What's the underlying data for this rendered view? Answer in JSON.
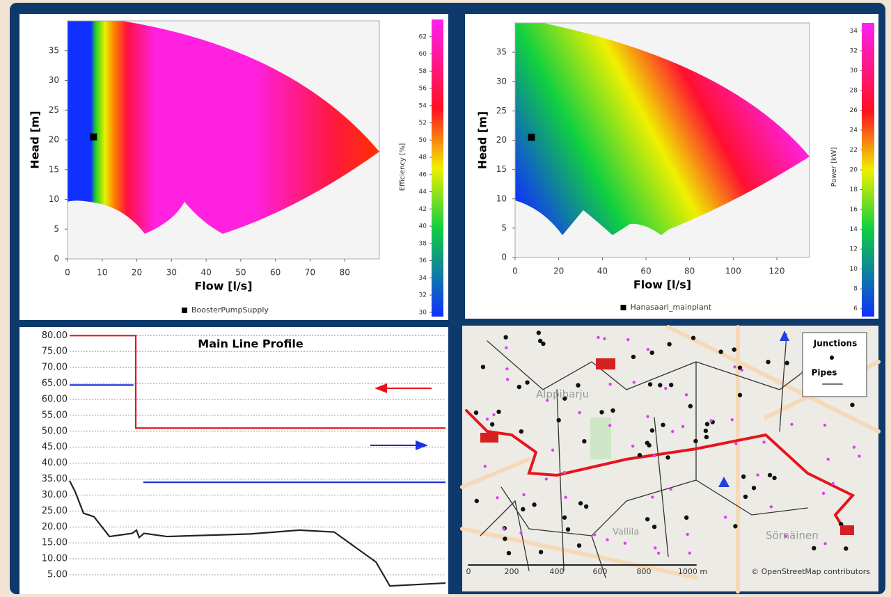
{
  "chart_data": [
    {
      "type": "heatmap",
      "xlabel": "Flow [l/s]",
      "ylabel": "Head [m]",
      "xlim": [
        0,
        90
      ],
      "xticks": [
        0,
        10,
        20,
        30,
        40,
        50,
        60,
        70,
        80
      ],
      "ylim": [
        0,
        40
      ],
      "yticks": [
        0,
        5,
        10,
        15,
        20,
        25,
        30,
        35
      ],
      "colorbar": {
        "label": "Efficiency [%]",
        "lim": [
          29.5,
          64
        ],
        "ticks": [
          30,
          32,
          34,
          36,
          38,
          40,
          42,
          44,
          46,
          48,
          50,
          52,
          54,
          56,
          58,
          60,
          62
        ]
      },
      "series": [
        {
          "name": "BoosterPumpSupply",
          "color": "#000000",
          "x": [
            7.5
          ],
          "values": [
            20.5
          ]
        }
      ]
    },
    {
      "type": "heatmap",
      "xlabel": "Flow [l/s]",
      "ylabel": "Head [m]",
      "xlim": [
        0,
        135
      ],
      "xticks": [
        0,
        20,
        40,
        60,
        80,
        100,
        120
      ],
      "ylim": [
        0,
        40
      ],
      "yticks": [
        0,
        5,
        10,
        15,
        20,
        25,
        30,
        35
      ],
      "colorbar": {
        "label": "Power [kW]",
        "lim": [
          5.2,
          34.8
        ],
        "ticks": [
          6,
          8,
          10,
          12,
          14,
          16,
          18,
          20,
          22,
          24,
          26,
          28,
          30,
          32,
          34
        ]
      },
      "series": [
        {
          "name": "Hanasaari_mainplant",
          "color": "#000000",
          "x": [
            7.5
          ],
          "values": [
            20.5
          ]
        }
      ]
    },
    {
      "type": "line",
      "title": "Main Line Profile",
      "xlim": [
        0,
        100
      ],
      "ylim": [
        0,
        80.5
      ],
      "grid": true,
      "yticks": [
        {
          "value": 5,
          "label": "5.00"
        },
        {
          "value": 10,
          "label": "10.00"
        },
        {
          "value": 15,
          "label": "15.00"
        },
        {
          "value": 20,
          "label": "20.00"
        },
        {
          "value": 25,
          "label": "25.00"
        },
        {
          "value": 30,
          "label": "30.00"
        },
        {
          "value": 35,
          "label": "35.00"
        },
        {
          "value": 40,
          "label": "40.00"
        },
        {
          "value": 45,
          "label": "45.00"
        },
        {
          "value": 50,
          "label": "50.00"
        },
        {
          "value": 55,
          "label": "55.00"
        },
        {
          "value": 60,
          "label": "60.00"
        },
        {
          "value": 65,
          "label": "65.00"
        },
        {
          "value": 70,
          "label": "70.00"
        },
        {
          "value": 75,
          "label": "75.00"
        },
        {
          "value": 80,
          "label": "80.00"
        }
      ],
      "series": [
        {
          "color": "#e8141b",
          "x": [
            0,
            17.6,
            17.6,
            100
          ],
          "values": [
            80,
            80,
            51,
            51
          ]
        },
        {
          "color": "#1a2ee0",
          "x": [
            0,
            17,
            18,
            19.6,
            100
          ],
          "values": [
            64.5,
            64.5,
            null,
            34,
            34
          ]
        },
        {
          "color": "#222222",
          "x": [
            0,
            1.5,
            3.7,
            6.5,
            10.6,
            16.7,
            17.8,
            18.5,
            19.8,
            25.9,
            48.1,
            61.1,
            70.4,
            81.5,
            85.2,
            100
          ],
          "values": [
            34.5,
            31,
            24.3,
            23.2,
            17,
            18,
            19,
            16.7,
            18,
            17,
            17.8,
            19,
            18.4,
            9,
            1.5,
            2.4
          ]
        }
      ]
    }
  ],
  "map": {
    "legend": {
      "junctions": "Junctions",
      "pipes": "Pipes"
    },
    "places": [
      "Alppiharju",
      "Sörnäinen",
      "Vallila"
    ],
    "scale": [
      "0",
      "200",
      "400",
      "600",
      "800",
      "1000 m"
    ],
    "attribution": "© OpenStreetMap contributors"
  }
}
